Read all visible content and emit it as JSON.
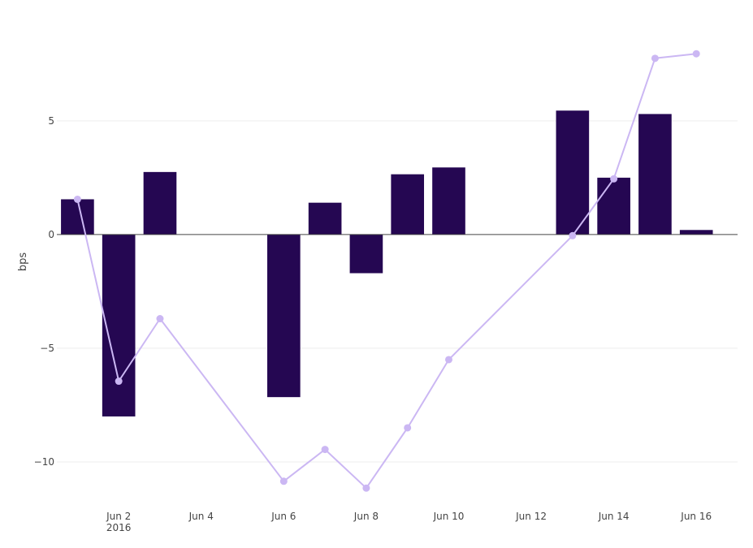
{
  "chart_data": {
    "type": "bar",
    "title": "",
    "xlabel": "",
    "ylabel": "bps",
    "ylim": [
      -12,
      9.6
    ],
    "xlim": [
      "2016-05-31T12:00",
      "2016-06-17"
    ],
    "grid": true,
    "legend": "none",
    "y_ticks": [
      5,
      0,
      -5,
      -10
    ],
    "y_tick_labels": [
      "5",
      "0",
      "−5",
      "−10"
    ],
    "x_ticks": [
      "2016-06-02",
      "2016-06-04",
      "2016-06-06",
      "2016-06-08",
      "2016-06-10",
      "2016-06-12",
      "2016-06-14",
      "2016-06-16"
    ],
    "x_tick_labels": [
      "Jun 2",
      "Jun 4",
      "Jun 6",
      "Jun 8",
      "Jun 10",
      "Jun 12",
      "Jun 14",
      "Jun 16"
    ],
    "x_tick_sublabel": "2016",
    "colors": {
      "bar": "#250752",
      "line": "#cbb7f3",
      "zero_line": "#444444",
      "grid": "#eeeeee"
    },
    "series": [
      {
        "type": "bar",
        "x": [
          "2016-06-01",
          "2016-06-02",
          "2016-06-03",
          "2016-06-06",
          "2016-06-07",
          "2016-06-08",
          "2016-06-09",
          "2016-06-10",
          "2016-06-13",
          "2016-06-14",
          "2016-06-15",
          "2016-06-16"
        ],
        "values": [
          1.55,
          -8.0,
          2.75,
          -7.15,
          1.4,
          -1.7,
          2.65,
          2.95,
          5.45,
          2.5,
          5.3,
          0.2
        ]
      },
      {
        "type": "line",
        "x": [
          "2016-06-01",
          "2016-06-02",
          "2016-06-03",
          "2016-06-06",
          "2016-06-07",
          "2016-06-08",
          "2016-06-09",
          "2016-06-10",
          "2016-06-13",
          "2016-06-14",
          "2016-06-15",
          "2016-06-16"
        ],
        "values": [
          1.55,
          -6.45,
          -3.7,
          -10.85,
          -9.45,
          -11.15,
          -8.5,
          -5.5,
          -0.05,
          2.45,
          7.75,
          7.95
        ]
      }
    ]
  }
}
